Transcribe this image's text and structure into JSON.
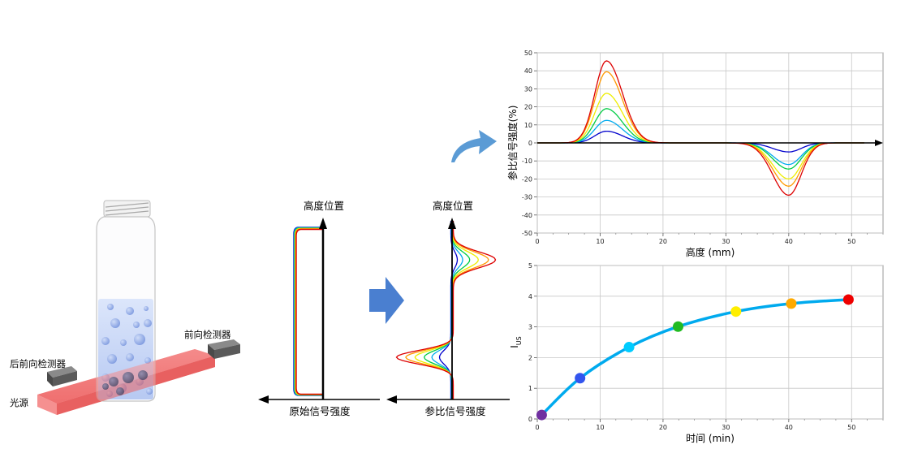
{
  "apparatus": {
    "front_detector": "前向检测器",
    "rear_detector": "后前向检测器",
    "light_source": "光源"
  },
  "raw_profile": {
    "y_label": "高度位置",
    "x_label": "原始信号强度"
  },
  "ratio_profile": {
    "y_label": "高度位置",
    "x_label": "参比信号强度"
  },
  "colors": {
    "series": [
      "#0000cc",
      "#00aaee",
      "#00cc44",
      "#eeee00",
      "#ff9900",
      "#dd0000"
    ],
    "arrow_blue": "#4a7fd0",
    "curve_arrow": "#5b9bd5",
    "time_curve": "#00aaee",
    "time_points": [
      "#7030a0",
      "#3355ee",
      "#00ccff",
      "#22bb22",
      "#ffee00",
      "#ffaa00",
      "#ee0000"
    ]
  },
  "chart_data": [
    {
      "type": "line",
      "xlabel": "高度 (mm)",
      "ylabel": "参比信号强度(%)",
      "xlim": [
        0,
        55
      ],
      "ylim": [
        -50,
        50
      ],
      "xticks": [
        0,
        10,
        20,
        30,
        40,
        50
      ],
      "yticks": [
        50,
        40,
        30,
        20,
        10,
        0,
        -10,
        -20,
        -30,
        -40,
        -50
      ],
      "grid": true,
      "series": [
        {
          "peak_x": 11,
          "peak_y": 6.5,
          "trough_x": 40,
          "trough_y": -5
        },
        {
          "peak_x": 11,
          "peak_y": 12.5,
          "trough_x": 40,
          "trough_y": -12
        },
        {
          "peak_x": 11,
          "peak_y": 19,
          "trough_x": 40,
          "trough_y": -14.5
        },
        {
          "peak_x": 11,
          "peak_y": 27.5,
          "trough_x": 40,
          "trough_y": -20
        },
        {
          "peak_x": 11,
          "peak_y": 39.5,
          "trough_x": 40,
          "trough_y": -24
        },
        {
          "peak_x": 11,
          "peak_y": 45.5,
          "trough_x": 40,
          "trough_y": -29
        }
      ]
    },
    {
      "type": "scatter",
      "xlabel": "时间 (min)",
      "ylabel": "I",
      "ylabel_sub": "US",
      "xlim": [
        0,
        55
      ],
      "ylim": [
        0,
        5
      ],
      "xticks": [
        0,
        10,
        20,
        30,
        40,
        50
      ],
      "yticks": [
        5,
        4,
        3,
        2,
        1,
        0
      ],
      "grid": true,
      "x": [
        0.7,
        6.8,
        14.6,
        22.4,
        31.6,
        40.4,
        49.5
      ],
      "y": [
        0.13,
        1.33,
        2.34,
        3.01,
        3.5,
        3.76,
        3.89
      ]
    }
  ]
}
